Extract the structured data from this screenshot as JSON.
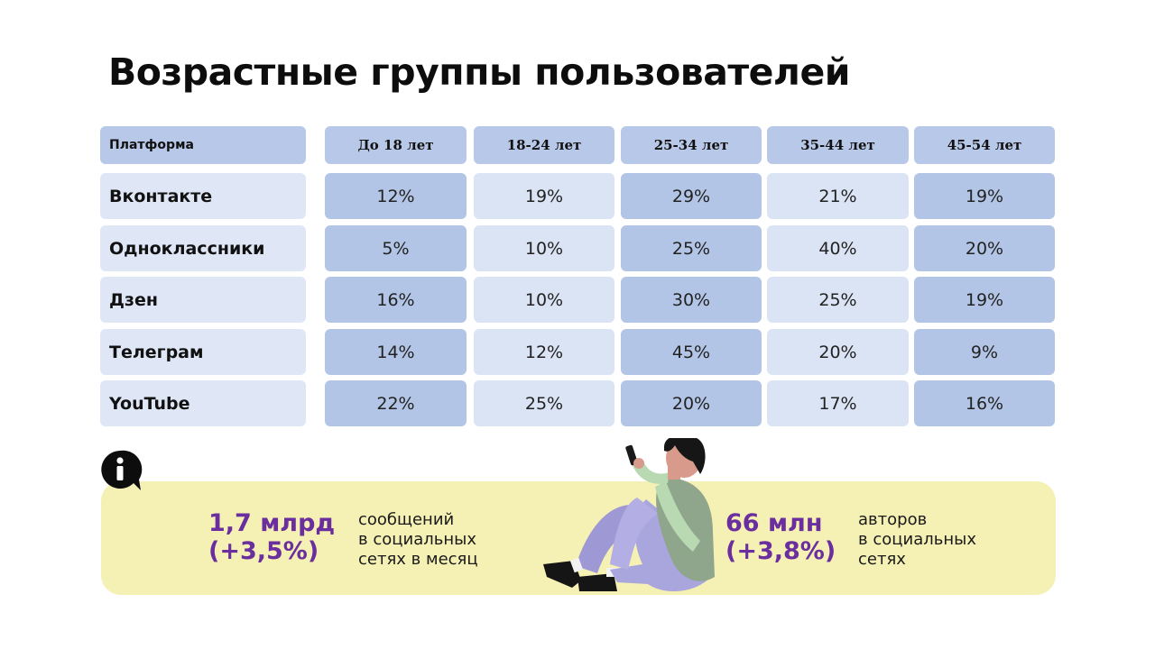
{
  "title": "Возрастные группы пользователей",
  "table": {
    "headers": [
      "Платформа",
      "До 18 лет",
      "18-24 лет",
      "25-34 лет",
      "35-44 лет",
      "45-54 лет"
    ],
    "rows": [
      {
        "platform": "Вконтакте",
        "values": [
          "12%",
          "19%",
          "29%",
          "21%",
          "19%"
        ]
      },
      {
        "platform": "Одноклассники",
        "values": [
          "5%",
          "10%",
          "25%",
          "40%",
          "20%"
        ]
      },
      {
        "platform": "Дзен",
        "values": [
          "16%",
          "10%",
          "30%",
          "25%",
          "19%"
        ]
      },
      {
        "platform": "Телеграм",
        "values": [
          "14%",
          "12%",
          "45%",
          "20%",
          "9%"
        ]
      },
      {
        "platform": "YouTube",
        "values": [
          "22%",
          "25%",
          "20%",
          "17%",
          "16%"
        ]
      }
    ]
  },
  "stats": [
    {
      "big": [
        "1,7 млрд",
        "(+3,5%)"
      ],
      "desc": [
        "сообщений",
        "в социальных",
        "сетях в месяц"
      ]
    },
    {
      "big": [
        "66 млн",
        "(+3,8%)"
      ],
      "desc": [
        "авторов",
        "в социальных",
        "сетях"
      ]
    }
  ],
  "colors": {
    "header_bg": "#b8c8e8",
    "dark_cell": "#b3c5e6",
    "light_cell": "#dbe4f4",
    "banner_bg": "#f5f0b4",
    "accent": "#6a2e9e"
  },
  "icons": [
    "info-icon",
    "person-with-phone-illustration"
  ]
}
